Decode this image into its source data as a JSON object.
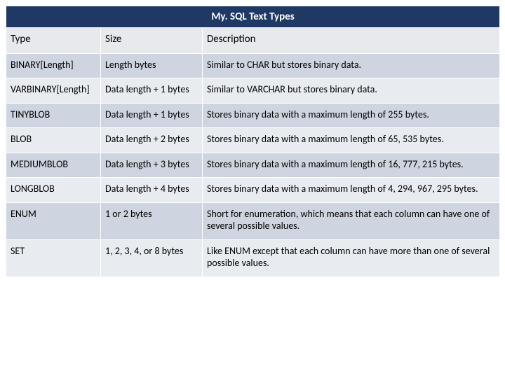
{
  "title": "My. SQL Text Types",
  "columns": [
    "Type",
    "Size",
    "Description"
  ],
  "rows": [
    [
      "BINARY[Length]",
      "Length bytes",
      "Similar to CHAR but stores binary data."
    ],
    [
      "VARBINARY[Length]",
      "Data length + 1 bytes",
      "Similar to VARCHAR but stores binary data."
    ],
    [
      "TINYBLOB",
      "Data length + 1 bytes",
      "Stores binary data with a maximum length of 255 bytes."
    ],
    [
      "BLOB",
      "Data length + 2 bytes",
      "Stores binary data with a maximum length of 65, 535 bytes."
    ],
    [
      "MEDIUMBLOB",
      "Data length + 3 bytes",
      "Stores binary data with a maximum length of 16, 777, 215 bytes."
    ],
    [
      "LONGBLOB",
      "Data length + 4 bytes",
      "Stores binary data with a maximum length of 4, 294, 967, 295 bytes."
    ],
    [
      "ENUM",
      "1 or 2 bytes",
      "Short for enumeration, which means that each column can have one of several possible values."
    ],
    [
      "SET",
      "1, 2, 3, 4, or 8 bytes",
      "Like ENUM except that each column can have more than one of several possible values."
    ]
  ],
  "colors": {
    "header_bg": "#1f3864",
    "header_text": "#ffffff",
    "band0": "#ced5e0",
    "band1": "#e8ebf0",
    "hdr_row": "#e8e9ec",
    "border": "#ffffff"
  },
  "font": {
    "family": "Calibri",
    "size_pt": 11
  }
}
